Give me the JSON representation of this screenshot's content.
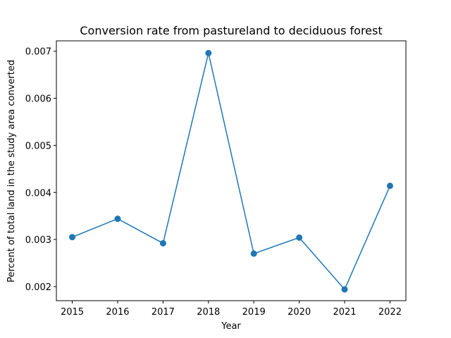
{
  "chart_data": {
    "type": "line",
    "title": "Conversion rate from pastureland to deciduous forest",
    "xlabel": "Year",
    "ylabel": "Percent of total land in the study area converted",
    "x": [
      2015,
      2016,
      2017,
      2018,
      2019,
      2020,
      2021,
      2022
    ],
    "series": [
      {
        "values": [
          0.00305,
          0.00344,
          0.00292,
          0.00696,
          0.0027,
          0.00304,
          0.00194,
          0.00414
        ],
        "color": "#1f77b4",
        "marker": "circle"
      }
    ],
    "xticks": [
      "2015",
      "2016",
      "2017",
      "2018",
      "2019",
      "2020",
      "2021",
      "2022"
    ],
    "yticks": [
      "0.002",
      "0.003",
      "0.004",
      "0.005",
      "0.006",
      "0.007"
    ],
    "ytick_values": [
      0.002,
      0.003,
      0.004,
      0.005,
      0.006,
      0.007
    ],
    "xlim": [
      2014.65,
      2022.35
    ],
    "ylim": [
      0.0017,
      0.00722
    ],
    "grid": false,
    "legend": false
  }
}
